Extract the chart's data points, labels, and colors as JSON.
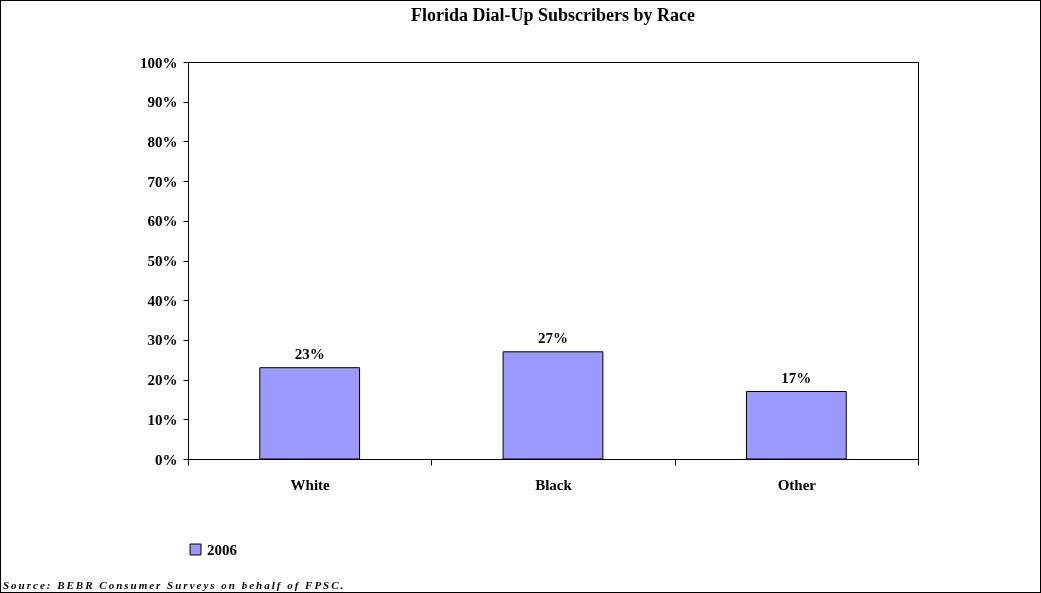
{
  "chart_data": {
    "type": "bar",
    "title": "Florida Dial-Up Subscribers by Race",
    "categories": [
      "White",
      "Black",
      "Other"
    ],
    "series": [
      {
        "name": "2006",
        "color": "#9999ff",
        "values": [
          23,
          27,
          17
        ],
        "value_labels": [
          "23%",
          "27%",
          "17%"
        ]
      }
    ],
    "ylim": [
      0,
      100
    ],
    "yticks": [
      {
        "value": 0,
        "label": "0%"
      },
      {
        "value": 10,
        "label": "10%"
      },
      {
        "value": 20,
        "label": "20%"
      },
      {
        "value": 30,
        "label": "30%"
      },
      {
        "value": 40,
        "label": "40%"
      },
      {
        "value": 50,
        "label": "50%"
      },
      {
        "value": 60,
        "label": "60%"
      },
      {
        "value": 70,
        "label": "70%"
      },
      {
        "value": 80,
        "label": "80%"
      },
      {
        "value": 90,
        "label": "90%"
      },
      {
        "value": 100,
        "label": "100%"
      }
    ],
    "grid": false,
    "legend": "bottom",
    "annotations": [
      "Source: BEBR Consumer Surveys on behalf of FPSC."
    ]
  }
}
